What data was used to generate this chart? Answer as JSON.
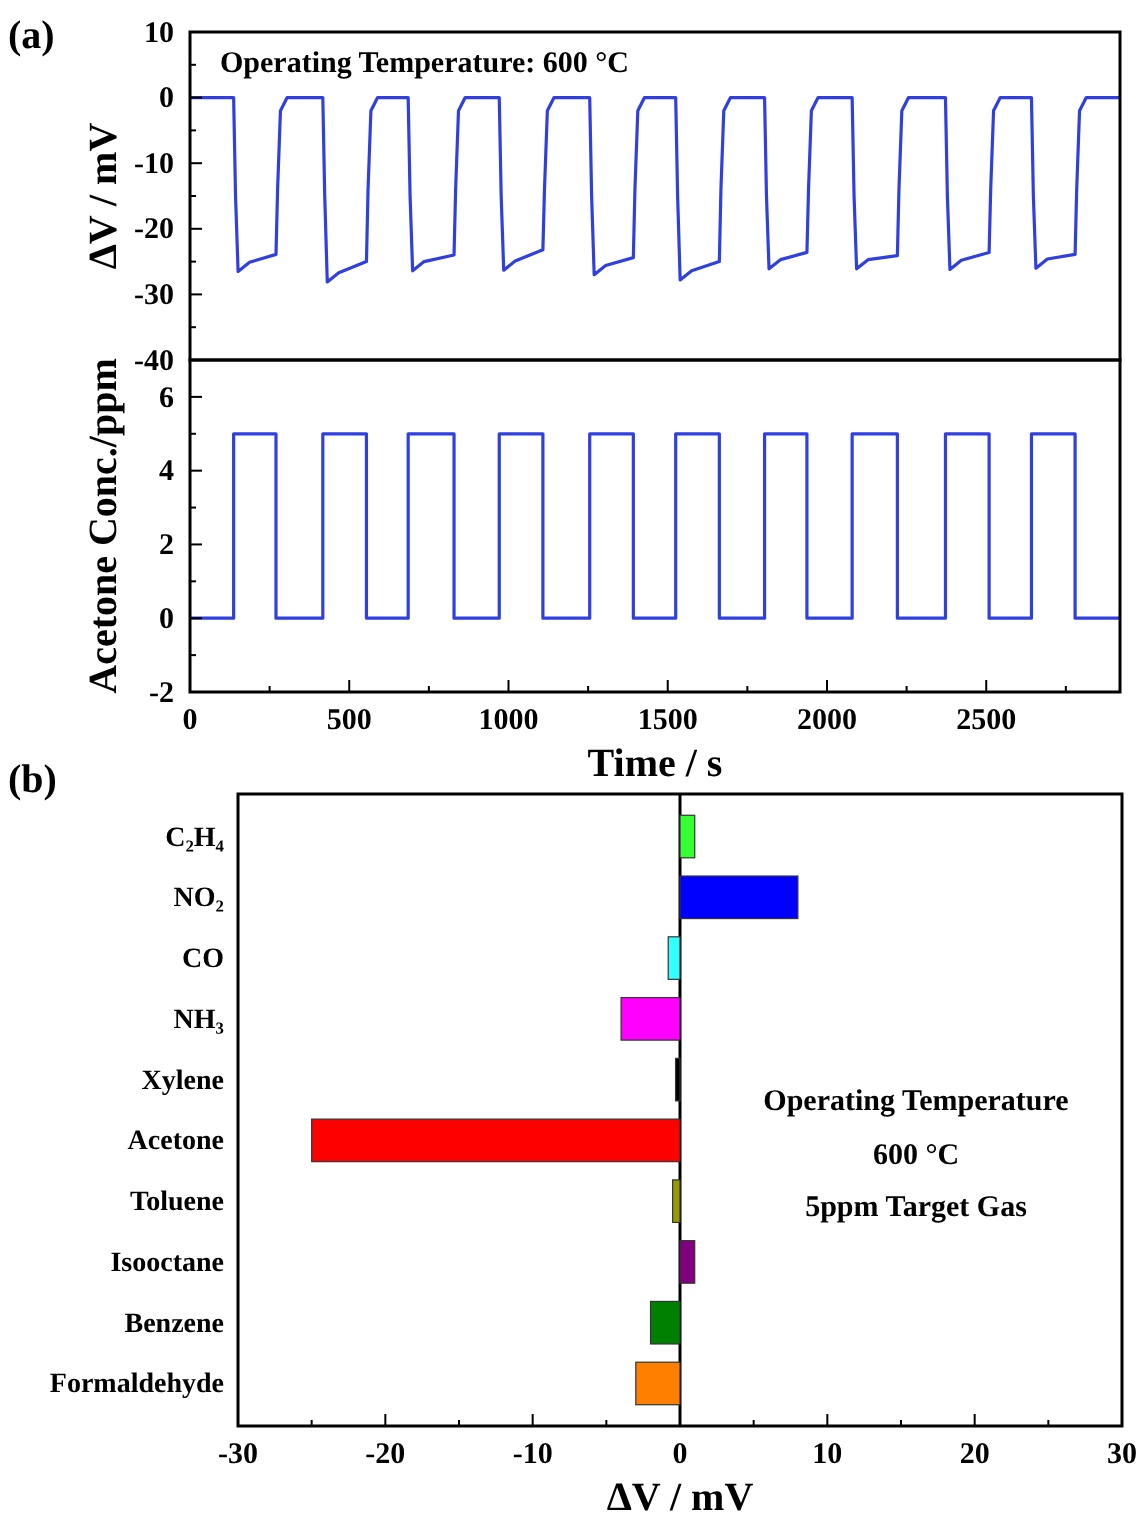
{
  "chart_data": [
    {
      "type": "line",
      "ylabel": "ΔV / mV",
      "annotations": [
        "(a)",
        "Operating Temperature: 600 °C"
      ],
      "xlim": [
        0,
        2920
      ],
      "ylim": [
        -40,
        10
      ],
      "yticks": [
        10,
        {
          "value": 5,
          "label": null
        },
        0,
        {
          "value": -5,
          "label": null
        },
        -10,
        {
          "value": -15,
          "label": null
        },
        -20,
        {
          "value": -25,
          "label": null
        },
        -30,
        {
          "value": -35,
          "label": null
        },
        -40
      ],
      "tick_labels": "y",
      "grid": false,
      "series": [
        {
          "color": "#3040e0",
          "x": [
            0,
            137,
            143,
            151,
            187,
            270,
            275,
            284,
            305,
            417,
            423,
            431,
            467,
            554,
            559,
            568,
            589,
            685,
            691,
            699,
            735,
            829,
            834,
            843,
            864,
            971,
            977,
            985,
            1021,
            1108,
            1113,
            1122,
            1143,
            1255,
            1261,
            1269,
            1305,
            1392,
            1397,
            1406,
            1427,
            1525,
            1531,
            1539,
            1575,
            1662,
            1667,
            1676,
            1697,
            1804,
            1810,
            1818,
            1854,
            1937,
            1942,
            1951,
            1972,
            2079,
            2085,
            2093,
            2129,
            2221,
            2226,
            2235,
            2256,
            2372,
            2378,
            2386,
            2422,
            2509,
            2514,
            2523,
            2544,
            2642,
            2648,
            2656,
            2692,
            2779,
            2784,
            2793,
            2814,
            2920
          ],
          "values": [
            0,
            0,
            -15,
            -26.5,
            -25.1,
            -23.9,
            -14,
            -2,
            0,
            0,
            -15,
            -28.1,
            -26.7,
            -25,
            -14,
            -2,
            0,
            0,
            -15,
            -26.4,
            -25,
            -24,
            -14,
            -2,
            0,
            0,
            -15,
            -26.3,
            -24.9,
            -23.2,
            -14,
            -2,
            0,
            0,
            -15,
            -27,
            -25.6,
            -24.4,
            -14,
            -2,
            0,
            0,
            -15,
            -27.8,
            -26.4,
            -25,
            -14,
            -2,
            0,
            0,
            -15,
            -26.1,
            -24.7,
            -23.6,
            -14,
            -2,
            0,
            0,
            -15,
            -26.1,
            -24.7,
            -24.1,
            -14,
            -2,
            0,
            0,
            -15,
            -26.2,
            -24.8,
            -23.6,
            -14,
            -2,
            0,
            0,
            -15,
            -26,
            -24.6,
            -23.9,
            -14,
            -2,
            0,
            0
          ]
        }
      ]
    },
    {
      "type": "step",
      "ylabel": "Acetone Conc./ppm",
      "xlabel": "Time / s",
      "xlim": [
        0,
        2920
      ],
      "xticks": [
        0,
        {
          "value": 250,
          "label": null
        },
        500,
        {
          "value": 750,
          "label": null
        },
        1000,
        {
          "value": 1250,
          "label": null
        },
        1500,
        {
          "value": 1750,
          "label": null
        },
        2000,
        {
          "value": 2250,
          "label": null
        },
        2500,
        {
          "value": 2750,
          "label": null
        }
      ],
      "ylim": [
        -2,
        7
      ],
      "yticks": [
        -2,
        {
          "value": -1,
          "label": null
        },
        0,
        {
          "value": 1,
          "label": null
        },
        2,
        {
          "value": 3,
          "label": null
        },
        4,
        {
          "value": 5,
          "label": null
        },
        6
      ],
      "grid": false,
      "series": [
        {
          "color": "#3040e0",
          "x": [
            0,
            137,
            270,
            417,
            554,
            685,
            829,
            971,
            1108,
            1255,
            1392,
            1525,
            1662,
            1804,
            1937,
            2079,
            2221,
            2372,
            2509,
            2642,
            2779,
            2920
          ],
          "values": [
            0,
            5,
            0,
            5,
            0,
            5,
            0,
            5,
            0,
            5,
            0,
            5,
            0,
            5,
            0,
            5,
            0,
            5,
            0,
            5,
            0,
            0
          ]
        }
      ]
    },
    {
      "type": "bar",
      "orientation": "horizontal",
      "xlabel": "ΔV / mV",
      "annotations": [
        "(b)",
        "Operating Temperature",
        "600 °C",
        "5ppm Target Gas"
      ],
      "categories": [
        "C₂H₄",
        "NO₂",
        "CO",
        "NH₃",
        "Xylene",
        "Acetone",
        "Toluene",
        "Isooctane",
        "Benzene",
        "Formaldehyde"
      ],
      "values": [
        1,
        8,
        -0.8,
        -4,
        -0.3,
        -25,
        -0.5,
        1,
        -2,
        -3
      ],
      "colors": [
        "#33ff33",
        "#0000ff",
        "#33ffff",
        "#ff00ff",
        "#000000",
        "#ff0000",
        "#999900",
        "#800080",
        "#008000",
        "#ff8000"
      ],
      "xlim": [
        -30,
        30
      ],
      "xticks": [
        -30,
        {
          "value": -25,
          "label": null
        },
        -20,
        {
          "value": -15,
          "label": null
        },
        -10,
        {
          "value": -5,
          "label": null
        },
        0,
        {
          "value": 5,
          "label": null
        },
        10,
        {
          "value": 15,
          "label": null
        },
        20,
        {
          "value": 25,
          "label": null
        },
        30
      ],
      "ref_lines": [
        {
          "axis": "x",
          "value": 0,
          "color": "#000000"
        }
      ]
    }
  ]
}
